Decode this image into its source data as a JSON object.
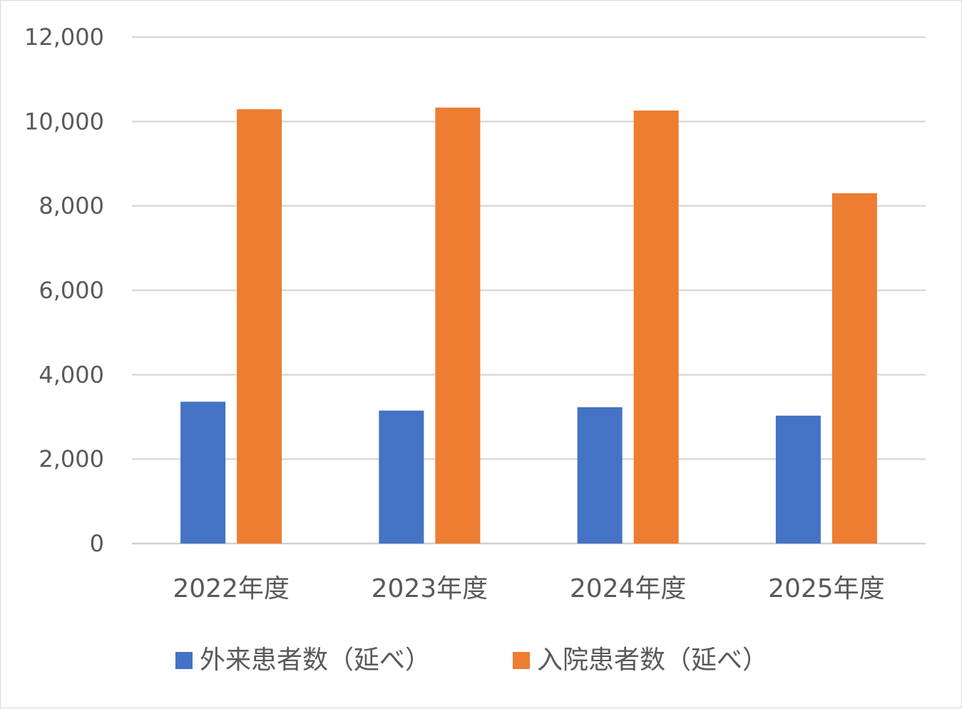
{
  "chart_data": {
    "type": "bar",
    "categories": [
      "2022年度",
      "2023年度",
      "2024年度",
      "2025年度"
    ],
    "series": [
      {
        "name": "外来患者数（延べ）",
        "color": "#4472c4",
        "values": [
          3360,
          3150,
          3230,
          3030
        ]
      },
      {
        "name": "入院患者数（延べ）",
        "color": "#ed7d31",
        "values": [
          10290,
          10330,
          10260,
          8300
        ]
      }
    ],
    "ylim": [
      0,
      12000
    ],
    "yticks": [
      0,
      2000,
      4000,
      6000,
      8000,
      10000,
      12000
    ],
    "ytick_labels": [
      "0",
      "2,000",
      "4,000",
      "6,000",
      "8,000",
      "10,000",
      "12,000"
    ],
    "grid": true,
    "legend_position": "bottom"
  }
}
